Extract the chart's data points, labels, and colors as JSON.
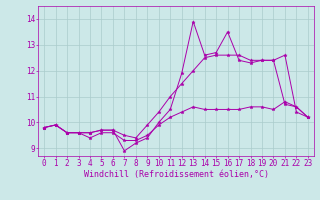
{
  "background_color": "#cce8e8",
  "grid_color": "#aacccc",
  "line_color": "#aa00aa",
  "marker_color": "#aa00aa",
  "xlabel": "Windchill (Refroidissement éolien,°C)",
  "xlabel_fontsize": 6.0,
  "tick_fontsize": 5.5,
  "xlim": [
    -0.5,
    23.5
  ],
  "ylim": [
    8.7,
    14.5
  ],
  "yticks": [
    9,
    10,
    11,
    12,
    13,
    14
  ],
  "xticks": [
    0,
    1,
    2,
    3,
    4,
    5,
    6,
    7,
    8,
    9,
    10,
    11,
    12,
    13,
    14,
    15,
    16,
    17,
    18,
    19,
    20,
    21,
    22,
    23
  ],
  "series": [
    [
      9.8,
      9.9,
      9.6,
      9.6,
      9.4,
      9.6,
      9.6,
      9.3,
      9.3,
      9.5,
      9.9,
      10.2,
      10.4,
      10.6,
      10.5,
      10.5,
      10.5,
      10.5,
      10.6,
      10.6,
      10.5,
      10.8,
      10.6,
      10.2
    ],
    [
      9.8,
      9.9,
      9.6,
      9.6,
      9.6,
      9.7,
      9.7,
      9.5,
      9.4,
      9.9,
      10.4,
      11.0,
      11.5,
      12.0,
      12.5,
      12.6,
      12.6,
      12.6,
      12.4,
      12.4,
      12.4,
      12.6,
      10.4,
      10.2
    ],
    [
      9.8,
      9.9,
      9.6,
      9.6,
      9.6,
      9.7,
      9.7,
      8.9,
      9.2,
      9.4,
      10.0,
      10.5,
      11.9,
      13.9,
      12.6,
      12.7,
      13.5,
      12.4,
      12.3,
      12.4,
      12.4,
      10.7,
      10.6,
      10.2
    ]
  ]
}
